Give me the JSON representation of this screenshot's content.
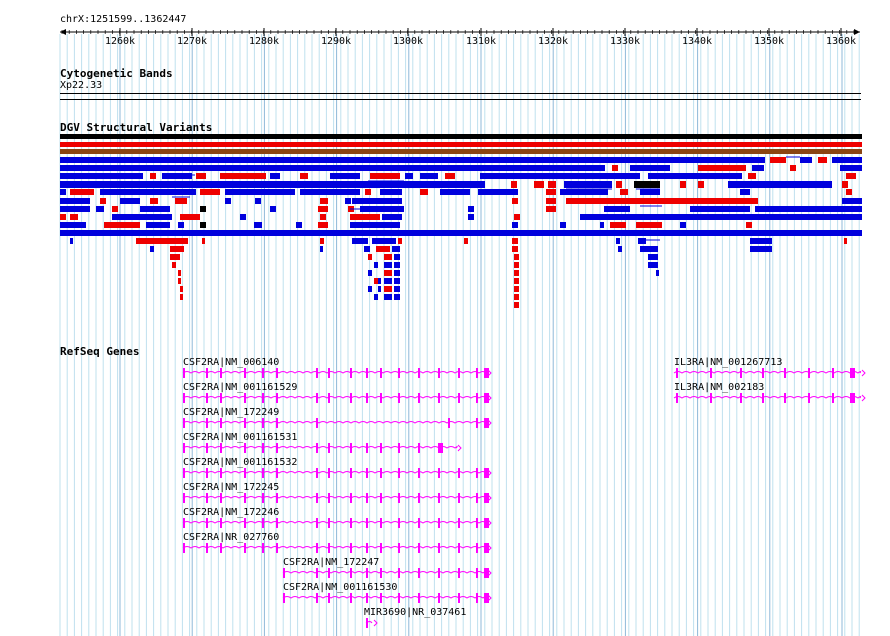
{
  "ruler": {
    "location": "chrX:1251599..1362447",
    "ticks": [
      {
        "label": "1260k"
      },
      {
        "label": "1270k"
      },
      {
        "label": "1280k"
      },
      {
        "label": "1290k"
      },
      {
        "label": "1300k"
      },
      {
        "label": "1310k"
      },
      {
        "label": "1320k"
      },
      {
        "label": "1330k"
      },
      {
        "label": "1340k"
      },
      {
        "label": "1350k"
      },
      {
        "label": "1360k"
      }
    ]
  },
  "cytoband": {
    "title": "Cytogenetic Bands",
    "band": "Xp22.33"
  },
  "dgv": {
    "title": "DGV Structural Variants",
    "colors": {
      "gain": "#0000dd",
      "loss": "#ee0000",
      "both": "#000000",
      "inversion": "#8b4513"
    }
  },
  "refseq": {
    "title": "RefSeq Genes",
    "color": "#ff00ff",
    "genes": [
      {
        "label": "CSF2RA|NM_006140"
      },
      {
        "label": "CSF2RA|NM_001161529"
      },
      {
        "label": "CSF2RA|NM_172249"
      },
      {
        "label": "CSF2RA|NM_001161531"
      },
      {
        "label": "CSF2RA|NM_001161532"
      },
      {
        "label": "CSF2RA|NM_172245"
      },
      {
        "label": "CSF2RA|NM_172246"
      },
      {
        "label": "CSF2RA|NR_027760"
      },
      {
        "label": "CSF2RA|NM_172247"
      },
      {
        "label": "CSF2RA|NM_001161530"
      },
      {
        "label": "MIR3690|NR_037461"
      },
      {
        "label": "IL3RA|NM_001267713"
      },
      {
        "label": "IL3RA|NM_002183"
      }
    ]
  }
}
